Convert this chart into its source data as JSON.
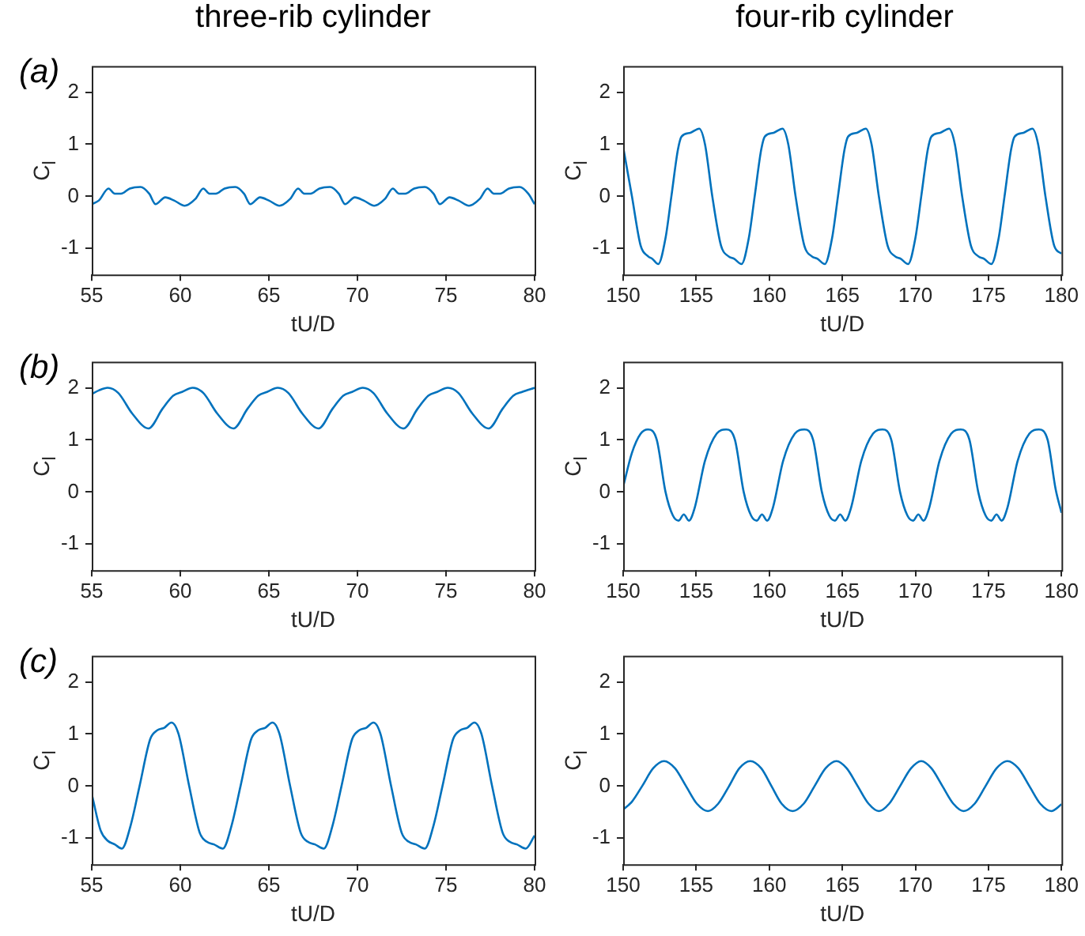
{
  "chart_data": [
    {
      "type": "line",
      "title": "three-rib cylinder",
      "annotations": [
        "(a)"
      ],
      "xlabel": "tU/D",
      "ylabel": "C$_{l}$",
      "xlim": [
        55,
        80
      ],
      "xticks": [
        55,
        60,
        65,
        70,
        75,
        80
      ],
      "ylim": [
        -1.5,
        2.5
      ],
      "yticks": [
        -1,
        0,
        1,
        2
      ],
      "grid": false,
      "color": "#0072bd",
      "x": [
        55,
        55.4,
        55.95,
        56.3,
        56.65,
        57.15,
        57.75,
        58.25,
        58.6,
        59.15,
        59.65,
        60.25,
        60.85,
        61.3,
        61.65,
        62.0,
        62.5,
        63.1,
        63.6,
        63.95,
        64.5,
        65.0,
        65.6,
        66.2,
        66.65,
        67.0,
        67.35,
        67.85,
        68.45,
        68.95,
        69.3,
        69.85,
        70.35,
        70.95,
        71.55,
        72.0,
        72.35,
        72.7,
        73.2,
        73.8,
        74.3,
        74.65,
        75.2,
        75.7,
        76.3,
        76.9,
        77.35,
        77.7,
        78.05,
        78.55,
        79.15,
        79.65,
        80
      ],
      "values": [
        -0.15,
        -0.08,
        0.15,
        0.05,
        0.05,
        0.15,
        0.18,
        0.05,
        -0.15,
        -0.02,
        -0.08,
        -0.18,
        -0.05,
        0.15,
        0.05,
        0.05,
        0.15,
        0.18,
        0.05,
        -0.15,
        -0.02,
        -0.08,
        -0.18,
        -0.05,
        0.15,
        0.05,
        0.05,
        0.15,
        0.18,
        0.05,
        -0.15,
        -0.02,
        -0.08,
        -0.18,
        -0.05,
        0.15,
        0.05,
        0.05,
        0.15,
        0.18,
        0.05,
        -0.15,
        -0.02,
        -0.08,
        -0.18,
        -0.05,
        0.15,
        0.05,
        0.05,
        0.15,
        0.18,
        0.05,
        -0.15
      ]
    },
    {
      "type": "line",
      "title": "four-rib cylinder",
      "xlabel": "tU/D",
      "ylabel": "C$_{l}$",
      "xlim": [
        150,
        180
      ],
      "xticks": [
        150,
        155,
        160,
        165,
        170,
        175,
        180
      ],
      "ylim": [
        -1.5,
        2.5
      ],
      "yticks": [
        -1,
        0,
        1,
        2
      ],
      "grid": false,
      "color": "#0072bd",
      "x": [
        150,
        150.6,
        151.2,
        151.7,
        152.0,
        152.4,
        152.9,
        153.3,
        153.75,
        154.0,
        154.6,
        155.2,
        155.6,
        156.1,
        156.7,
        157.2,
        157.6,
        158.1,
        158.6,
        159.0,
        159.45,
        159.7,
        160.3,
        160.9,
        161.3,
        161.8,
        162.4,
        162.9,
        163.3,
        163.8,
        164.3,
        164.7,
        165.15,
        165.4,
        166.0,
        166.6,
        167.0,
        167.5,
        168.1,
        168.6,
        169.0,
        169.5,
        170.0,
        170.4,
        170.85,
        171.1,
        171.7,
        172.3,
        172.7,
        173.2,
        173.8,
        174.3,
        174.7,
        175.2,
        175.7,
        176.1,
        176.55,
        176.8,
        177.4,
        178.0,
        178.4,
        178.9,
        179.5,
        180
      ],
      "values": [
        0.95,
        0,
        -0.95,
        -1.15,
        -1.2,
        -1.3,
        -0.8,
        0,
        0.9,
        1.15,
        1.22,
        1.3,
        1.0,
        0,
        -0.95,
        -1.15,
        -1.2,
        -1.3,
        -0.8,
        0,
        0.9,
        1.15,
        1.22,
        1.3,
        1.0,
        0,
        -0.95,
        -1.15,
        -1.2,
        -1.3,
        -0.8,
        0,
        0.9,
        1.15,
        1.22,
        1.3,
        1.0,
        0,
        -0.95,
        -1.15,
        -1.2,
        -1.3,
        -0.8,
        0,
        0.9,
        1.15,
        1.22,
        1.3,
        1.0,
        0,
        -0.95,
        -1.15,
        -1.2,
        -1.3,
        -0.8,
        0,
        0.9,
        1.15,
        1.22,
        1.3,
        1.0,
        0,
        -0.95,
        -1.1
      ]
    },
    {
      "type": "line",
      "annotations": [
        "(b)"
      ],
      "xlabel": "tU/D",
      "ylabel": "C$_{l}$",
      "xlim": [
        55,
        80
      ],
      "xticks": [
        55,
        60,
        65,
        70,
        75,
        80
      ],
      "ylim": [
        -1.5,
        2.5
      ],
      "yticks": [
        -1,
        0,
        1,
        2
      ],
      "grid": false,
      "color": "#0072bd",
      "x": [
        55,
        55.4,
        55.9,
        56.5,
        57.3,
        58.2,
        59.0,
        59.6,
        60.1,
        60.7,
        61.3,
        62.1,
        63.0,
        63.8,
        64.4,
        64.9,
        65.5,
        66.1,
        66.9,
        67.8,
        68.6,
        69.2,
        69.7,
        70.3,
        70.9,
        71.7,
        72.6,
        73.4,
        74.0,
        74.5,
        75.1,
        75.7,
        76.5,
        77.4,
        78.2,
        78.8,
        79.3,
        80
      ],
      "values": [
        1.88,
        1.95,
        2.0,
        1.9,
        1.5,
        1.22,
        1.6,
        1.85,
        1.92,
        2.0,
        1.9,
        1.5,
        1.22,
        1.6,
        1.85,
        1.92,
        2.0,
        1.9,
        1.5,
        1.22,
        1.6,
        1.85,
        1.92,
        2.0,
        1.9,
        1.5,
        1.22,
        1.6,
        1.85,
        1.92,
        2.0,
        1.9,
        1.5,
        1.22,
        1.6,
        1.85,
        1.92,
        2.0
      ]
    },
    {
      "type": "line",
      "xlabel": "tU/D",
      "ylabel": "C$_{l}$",
      "xlim": [
        150,
        180
      ],
      "xticks": [
        150,
        155,
        160,
        165,
        170,
        175,
        180
      ],
      "ylim": [
        -1.5,
        2.5
      ],
      "yticks": [
        -1,
        0,
        1,
        2
      ],
      "grid": false,
      "color": "#0072bd",
      "x": [
        150,
        150.6,
        151.2,
        151.7,
        152.3,
        152.9,
        153.4,
        153.8,
        154.15,
        154.5,
        154.9,
        155.6,
        156.4,
        157.05,
        157.65,
        158.25,
        158.75,
        159.15,
        159.5,
        159.85,
        160.25,
        160.95,
        161.75,
        162.4,
        163.0,
        163.6,
        164.1,
        164.5,
        164.85,
        165.2,
        165.6,
        166.3,
        167.1,
        167.75,
        168.35,
        168.95,
        169.45,
        169.85,
        170.2,
        170.55,
        170.95,
        171.65,
        172.45,
        173.1,
        173.7,
        174.3,
        174.8,
        175.2,
        175.55,
        175.9,
        176.3,
        177.0,
        177.8,
        178.45,
        179.05,
        179.6,
        180
      ],
      "values": [
        0.1,
        0.75,
        1.12,
        1.2,
        1.0,
        0,
        -0.45,
        -0.55,
        -0.43,
        -0.55,
        -0.3,
        0.6,
        1.12,
        1.2,
        1.0,
        0,
        -0.45,
        -0.55,
        -0.43,
        -0.55,
        -0.3,
        0.6,
        1.12,
        1.2,
        1.0,
        0,
        -0.45,
        -0.55,
        -0.43,
        -0.55,
        -0.3,
        0.6,
        1.12,
        1.2,
        1.0,
        0,
        -0.45,
        -0.55,
        -0.43,
        -0.55,
        -0.3,
        0.6,
        1.12,
        1.2,
        1.0,
        0,
        -0.45,
        -0.55,
        -0.43,
        -0.55,
        -0.3,
        0.6,
        1.12,
        1.2,
        1.0,
        0.05,
        -0.4
      ]
    },
    {
      "type": "line",
      "annotations": [
        "(c)"
      ],
      "xlabel": "tU/D",
      "ylabel": "C$_{l}$",
      "xlim": [
        55,
        80
      ],
      "xticks": [
        55,
        60,
        65,
        70,
        75,
        80
      ],
      "ylim": [
        -1.5,
        2.5
      ],
      "yticks": [
        -1,
        0,
        1,
        2
      ],
      "grid": false,
      "color": "#0072bd",
      "x": [
        55,
        55.5,
        55.9,
        56.3,
        56.7,
        57.2,
        57.7,
        58.3,
        58.7,
        59.1,
        59.5,
        59.9,
        60.5,
        61.1,
        61.5,
        61.9,
        62.4,
        62.9,
        63.4,
        64.0,
        64.4,
        64.8,
        65.2,
        65.6,
        66.2,
        66.8,
        67.2,
        67.6,
        68.1,
        68.6,
        69.1,
        69.7,
        70.1,
        70.5,
        70.9,
        71.3,
        71.9,
        72.5,
        72.9,
        73.3,
        73.8,
        74.3,
        74.8,
        75.4,
        75.8,
        76.2,
        76.6,
        77.0,
        77.6,
        78.2,
        78.6,
        79.0,
        79.5,
        80
      ],
      "values": [
        -0.15,
        -0.85,
        -1.05,
        -1.12,
        -1.2,
        -0.75,
        0,
        0.9,
        1.07,
        1.12,
        1.22,
        1.0,
        0,
        -0.9,
        -1.07,
        -1.12,
        -1.2,
        -0.75,
        0,
        0.9,
        1.07,
        1.12,
        1.22,
        1.0,
        0,
        -0.9,
        -1.07,
        -1.12,
        -1.2,
        -0.75,
        0,
        0.9,
        1.07,
        1.12,
        1.22,
        1.0,
        0,
        -0.9,
        -1.07,
        -1.12,
        -1.2,
        -0.75,
        0,
        0.9,
        1.07,
        1.12,
        1.22,
        1.0,
        0,
        -0.9,
        -1.07,
        -1.12,
        -1.2,
        -0.95
      ]
    },
    {
      "type": "line",
      "xlabel": "tU/D",
      "ylabel": "C$_{l}$",
      "xlim": [
        150,
        180
      ],
      "xticks": [
        150,
        155,
        160,
        165,
        170,
        175,
        180
      ],
      "ylim": [
        -1.5,
        2.5
      ],
      "yticks": [
        -1,
        0,
        1,
        2
      ],
      "grid": false,
      "color": "#0072bd",
      "x": [
        150,
        150.6,
        151.3,
        152.05,
        152.8,
        153.55,
        154.3,
        155.05,
        155.8,
        156.5,
        157.25,
        157.95,
        158.7,
        159.45,
        160.15,
        160.85,
        161.6,
        162.35,
        163.1,
        163.85,
        164.6,
        165.3,
        166.05,
        166.8,
        167.5,
        168.2,
        168.95,
        169.7,
        170.4,
        171.1,
        171.85,
        172.6,
        173.3,
        174.05,
        174.8,
        175.55,
        176.3,
        177.05,
        177.8,
        178.55,
        179.3,
        180
      ],
      "values": [
        -0.45,
        -0.3,
        0,
        0.34,
        0.48,
        0.34,
        0,
        -0.34,
        -0.48,
        -0.34,
        0,
        0.34,
        0.48,
        0.34,
        0,
        -0.34,
        -0.48,
        -0.34,
        0,
        0.34,
        0.48,
        0.34,
        0,
        -0.34,
        -0.48,
        -0.34,
        0,
        0.34,
        0.48,
        0.34,
        0,
        -0.34,
        -0.48,
        -0.34,
        0,
        0.34,
        0.48,
        0.34,
        0,
        -0.34,
        -0.48,
        -0.35
      ]
    }
  ]
}
